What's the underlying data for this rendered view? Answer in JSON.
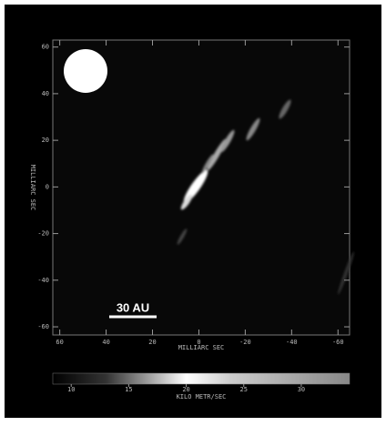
{
  "image": {
    "xlabel": "MILLIARC SEC",
    "ylabel": "MILLIARC SEC",
    "xlim": [
      63,
      -65
    ],
    "ylim": [
      -63.5,
      63
    ],
    "xticks": [
      60,
      40,
      20,
      0,
      -20,
      -40,
      -60
    ],
    "yticks": [
      60,
      40,
      20,
      0,
      -20,
      -40,
      -60
    ],
    "scale_bar": "30 AU",
    "colorbar": {
      "label": "KILO METR/SEC",
      "lim": [
        8.4,
        34.2
      ],
      "ticks": [
        10,
        15,
        20,
        25,
        30
      ]
    }
  }
}
